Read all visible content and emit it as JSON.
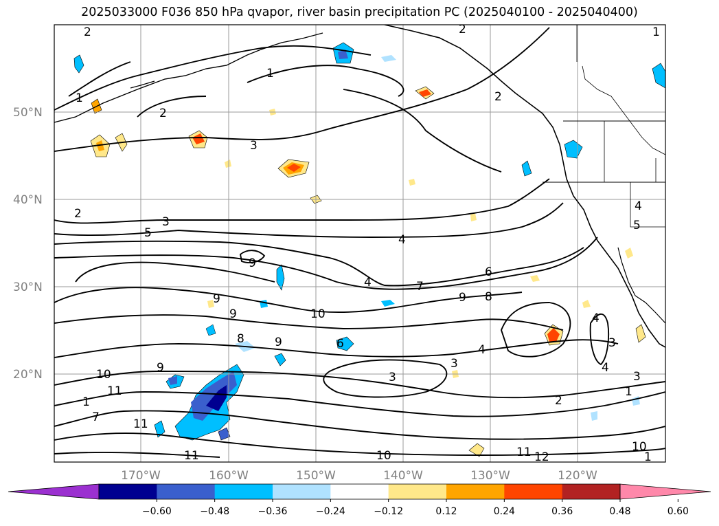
{
  "title": "2025033000 F036 850 hPa qvapor, river basin precipitation PC (2025040100 - 2025040400)",
  "map": {
    "lat_labels": [
      "50°N",
      "40°N",
      "30°N",
      "20°N"
    ],
    "lon_labels": [
      "170°W",
      "160°W",
      "150°W",
      "140°W",
      "130°W",
      "120°W"
    ],
    "contour_labels": [
      "2",
      "1",
      "2",
      "2",
      "1",
      "3",
      "2",
      "2",
      "4",
      "1",
      "3",
      "5",
      "4",
      "4",
      "5",
      "9",
      "4",
      "7",
      "6",
      "9",
      "8",
      "10",
      "9",
      "9",
      "9",
      "6",
      "8",
      "9",
      "3",
      "4",
      "3",
      "4",
      "10",
      "1",
      "7",
      "11",
      "11",
      "11",
      "10",
      "3",
      "3",
      "1",
      "2",
      "11",
      "12",
      "10",
      "1"
    ]
  },
  "colorbar": {
    "ticks": [
      "−0.60",
      "−0.48",
      "−0.36",
      "−0.24",
      "−0.12",
      "0.12",
      "0.24",
      "0.36",
      "0.48",
      "0.60"
    ],
    "colors": [
      "#9b30d0",
      "#000090",
      "#3a5fcd",
      "#00bfff",
      "#b0e2ff",
      "#ffffff",
      "#ffe88a",
      "#ffa500",
      "#ff4500",
      "#b22222",
      "#ff88aa"
    ]
  }
}
